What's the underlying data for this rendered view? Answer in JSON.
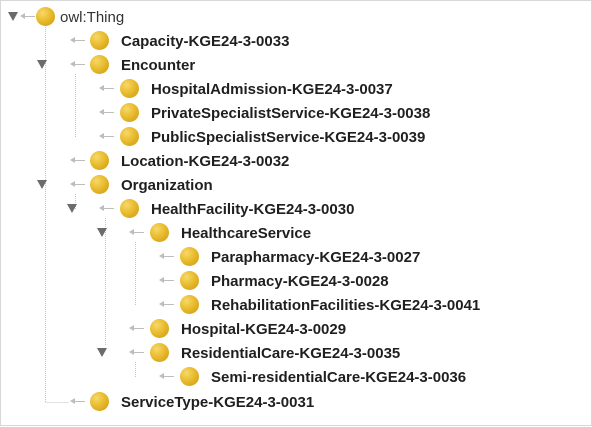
{
  "tree": {
    "root": "owl:Thing",
    "items": [
      {
        "label": "Capacity-KGE24-3-0033",
        "expanded": false
      },
      {
        "label": "Encounter",
        "expanded": true,
        "children": [
          {
            "label": "HospitalAdmission-KGE24-3-0037"
          },
          {
            "label": "PrivateSpecialistService-KGE24-3-0038"
          },
          {
            "label": "PublicSpecialistService-KGE24-3-0039"
          }
        ]
      },
      {
        "label": "Location-KGE24-3-0032"
      },
      {
        "label": "Organization",
        "expanded": true,
        "children": [
          {
            "label": "HealthFacility-KGE24-3-0030",
            "expanded": true,
            "children": [
              {
                "label": "HealthcareService",
                "expanded": true,
                "children": [
                  {
                    "label": "Parapharmacy-KGE24-3-0027"
                  },
                  {
                    "label": "Pharmacy-KGE24-3-0028"
                  },
                  {
                    "label": "RehabilitationFacilities-KGE24-3-0041"
                  }
                ]
              },
              {
                "label": "Hospital-KGE24-3-0029"
              },
              {
                "label": "ResidentialCare-KGE24-3-0035",
                "expanded": true,
                "children": [
                  {
                    "label": "Semi-residentialCare-KGE24-3-0036"
                  }
                ]
              }
            ]
          }
        ]
      },
      {
        "label": "ServiceType-KGE24-3-0031"
      }
    ]
  },
  "colors": {
    "class_icon": "#e9bb2e",
    "connector": "#bdbdbd",
    "toggle": "#6b6b6b",
    "label": "#1f1f1f"
  }
}
